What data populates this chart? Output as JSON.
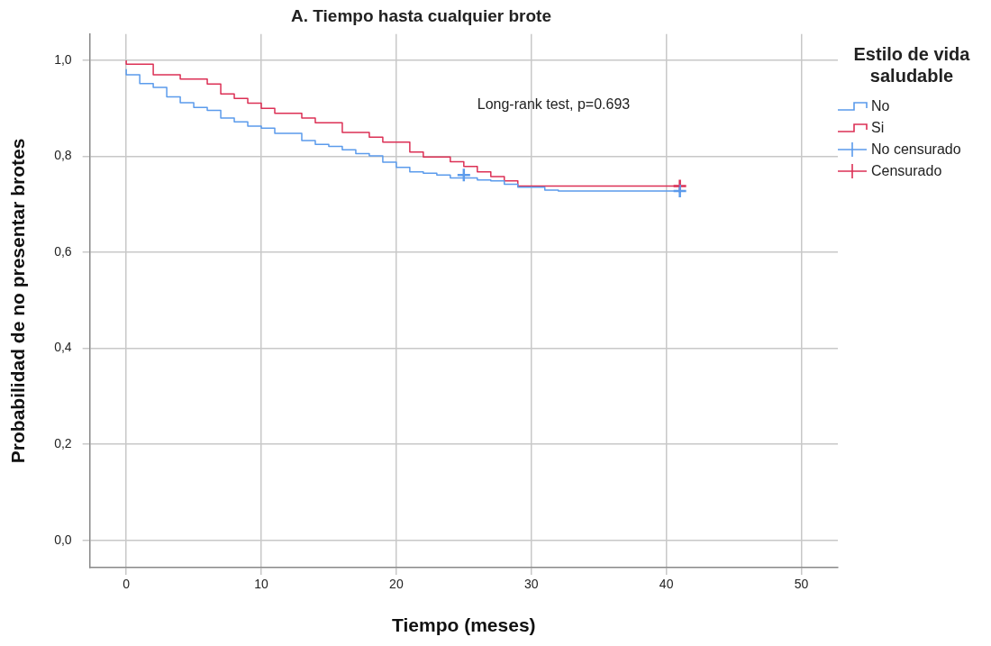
{
  "chart_data": {
    "type": "step",
    "title": "A. Tiempo hasta cualquier brote",
    "xlabel": "Tiempo (meses)",
    "ylabel": "Probabilidad de no presentar brotes",
    "legend_title": "Estilo de vida saludable",
    "legend": "right",
    "grid": true,
    "xlim": [
      -2.7,
      52.7
    ],
    "xticks": [
      0,
      10,
      20,
      30,
      40,
      50
    ],
    "ylim": [
      -0.057,
      1.055
    ],
    "yticks": [
      {
        "value": 0,
        "label": "0,0"
      },
      {
        "value": 0.2,
        "label": "0,2"
      },
      {
        "value": 0.4,
        "label": "0,4"
      },
      {
        "value": 0.6,
        "label": "0,6"
      },
      {
        "value": 0.8,
        "label": "0,8"
      },
      {
        "value": 1,
        "label": "1,0"
      }
    ],
    "annotations": [
      "Long-rank test, p=0.693"
    ],
    "series": [
      {
        "name": "No",
        "color": "#5b9bec",
        "x": [
          0,
          1,
          2,
          3,
          4,
          5,
          6,
          7,
          8,
          9,
          10,
          11,
          13,
          14,
          15,
          16,
          17,
          18,
          19,
          20,
          21,
          22,
          23,
          24,
          26,
          27,
          28,
          29,
          31,
          32,
          34,
          41
        ],
        "values": [
          0.982,
          0.97,
          0.952,
          0.944,
          0.924,
          0.912,
          0.902,
          0.896,
          0.88,
          0.872,
          0.863,
          0.859,
          0.848,
          0.833,
          0.825,
          0.821,
          0.814,
          0.806,
          0.801,
          0.788,
          0.777,
          0.768,
          0.765,
          0.761,
          0.755,
          0.751,
          0.749,
          0.742,
          0.736,
          0.73,
          0.728,
          0.728
        ]
      },
      {
        "name": "Si",
        "color": "#dc3055",
        "x": [
          0,
          2,
          4,
          6,
          7,
          8,
          9,
          10,
          11,
          13,
          14,
          16,
          18,
          19,
          21,
          22,
          24,
          25,
          26,
          27,
          28,
          29,
          37,
          41
        ],
        "values": [
          1,
          0.992,
          0.97,
          0.961,
          0.951,
          0.93,
          0.921,
          0.911,
          0.9,
          0.89,
          0.88,
          0.87,
          0.85,
          0.84,
          0.83,
          0.809,
          0.799,
          0.789,
          0.779,
          0.768,
          0.758,
          0.749,
          0.738,
          0.738
        ]
      },
      {
        "name": "No censurado",
        "type": "scatter",
        "marker": "cross",
        "color": "#5b9bec",
        "x": [
          25,
          41
        ],
        "values": [
          0.761,
          0.728
        ]
      },
      {
        "name": "Censurado",
        "type": "scatter",
        "marker": "cross",
        "color": "#dc3055",
        "x": [
          41
        ],
        "values": [
          0.738
        ]
      }
    ]
  }
}
